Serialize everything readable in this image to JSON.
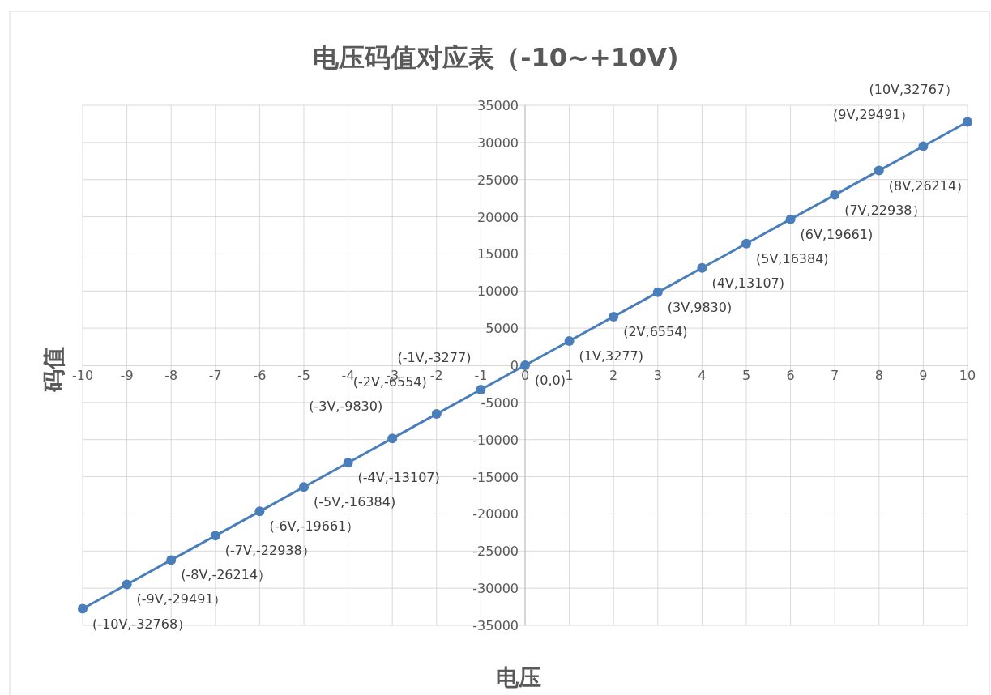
{
  "chart_data": {
    "type": "line",
    "title": "电压码值对应表（-10~+10V)",
    "xlabel": "电压",
    "ylabel": "码值",
    "x": [
      -10,
      -9,
      -8,
      -7,
      -6,
      -5,
      -4,
      -3,
      -2,
      -1,
      0,
      1,
      2,
      3,
      4,
      5,
      6,
      7,
      8,
      9,
      10
    ],
    "series": [
      {
        "color": "#4a7ebb",
        "values": [
          -32768,
          -29491,
          -26214,
          -22938,
          -19661,
          -16384,
          -13107,
          -9830,
          -6554,
          -3277,
          0,
          3277,
          6554,
          9830,
          13107,
          16384,
          19661,
          22938,
          26214,
          29491,
          32767
        ],
        "value_labels": [
          "(-10V,-32768）",
          "(-9V,-29491）",
          "(-8V,-26214）",
          "(-7V,-22938）",
          "(-6V,-19661）",
          "(-5V,-16384)",
          "(-4V,-13107)",
          "(-3V,-9830)",
          "(-2V,-6554)",
          "(-1V,-3277)",
          "(0,0)",
          "(1V,3277)",
          "(2V,6554)",
          "(3V,9830)",
          "(4V,13107)",
          "(5V,16384)",
          "(6V,19661)",
          "(7V,22938）",
          "(8V,26214）",
          "(9V,29491）",
          "(10V,32767）"
        ]
      }
    ],
    "xlim": [
      -10,
      10
    ],
    "xticks": [
      -10,
      -9,
      -8,
      -7,
      -6,
      -5,
      -4,
      -3,
      -2,
      -1,
      0,
      1,
      2,
      3,
      4,
      5,
      6,
      7,
      8,
      9,
      10
    ],
    "ylim": [
      -35000,
      35000
    ],
    "yticks": [
      -35000,
      -30000,
      -25000,
      -20000,
      -15000,
      -10000,
      -5000,
      0,
      5000,
      10000,
      15000,
      20000,
      25000,
      30000,
      35000
    ],
    "grid": true,
    "marker": "circle",
    "line_style": "solid"
  }
}
